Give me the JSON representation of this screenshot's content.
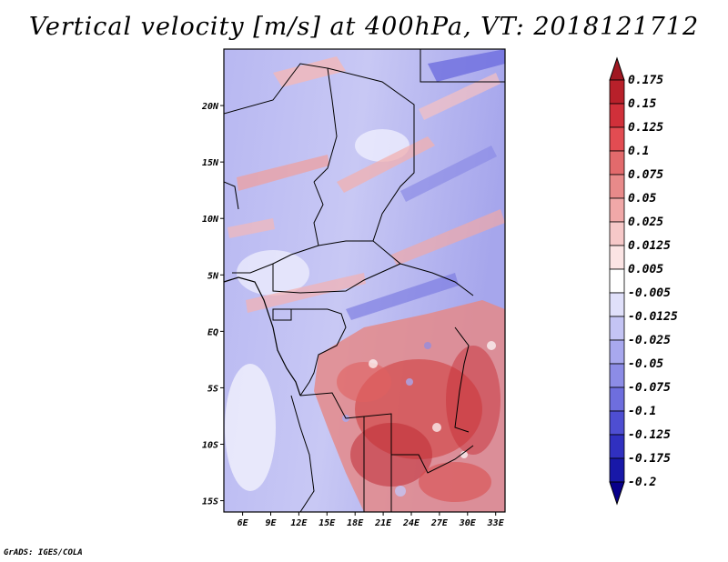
{
  "title": "Vertical velocity [m/s] at 400hPa, VT: 2018121712",
  "credit": "GrADS: IGES/COLA",
  "lat_labels": [
    "20N",
    "15N",
    "10N",
    "5N",
    "EQ",
    "5S",
    "10S",
    "15S"
  ],
  "lat_values": [
    20,
    15,
    10,
    5,
    0,
    -5,
    -10,
    -15
  ],
  "lon_labels": [
    "6E",
    "9E",
    "12E",
    "15E",
    "18E",
    "21E",
    "24E",
    "27E",
    "30E",
    "33E"
  ],
  "lon_values": [
    6,
    9,
    12,
    15,
    18,
    21,
    24,
    27,
    30,
    33
  ],
  "map_extent": {
    "lon_min": 4,
    "lon_max": 34,
    "lat_min": -16,
    "lat_max": 25
  },
  "colorbar": {
    "labels": [
      "0.175",
      "0.15",
      "0.125",
      "0.1",
      "0.075",
      "0.05",
      "0.025",
      "0.0125",
      "0.005",
      "-0.005",
      "-0.0125",
      "-0.025",
      "-0.05",
      "-0.075",
      "-0.1",
      "-0.125",
      "-0.175",
      "-0.2"
    ],
    "colors": [
      "#a01822",
      "#b8202a",
      "#d0303a",
      "#e24c52",
      "#e26a6c",
      "#e88a8a",
      "#f0a8a8",
      "#f6c8c8",
      "#fbe4e4",
      "#ffffff",
      "#e0e0fa",
      "#c4c4f4",
      "#a8a8ee",
      "#8c8ce6",
      "#6e6ede",
      "#4e4ed2",
      "#3030c0",
      "#1818a8",
      "#08008a"
    ]
  }
}
